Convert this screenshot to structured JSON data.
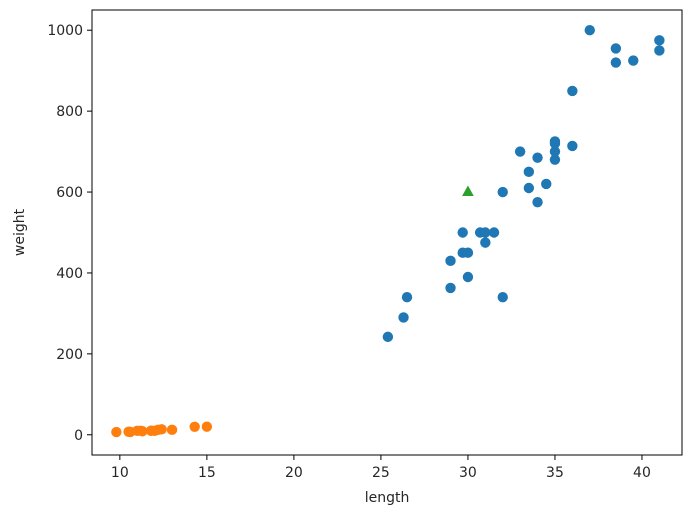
{
  "chart_data": {
    "type": "scatter",
    "xlabel": "length",
    "ylabel": "weight",
    "xlim": [
      8.4,
      42.3
    ],
    "ylim": [
      -50,
      1050
    ],
    "xticks": [
      10,
      15,
      20,
      25,
      30,
      35,
      40
    ],
    "yticks": [
      0,
      200,
      400,
      600,
      800,
      1000
    ],
    "grid": false,
    "series": [
      {
        "color": "#1f77b4",
        "marker": "circle",
        "points": [
          [
            25.4,
            242
          ],
          [
            26.3,
            290
          ],
          [
            26.5,
            340
          ],
          [
            29.0,
            363
          ],
          [
            29.0,
            430
          ],
          [
            29.7,
            450
          ],
          [
            29.7,
            500
          ],
          [
            30.0,
            390
          ],
          [
            30.0,
            450
          ],
          [
            30.7,
            500
          ],
          [
            31.0,
            475
          ],
          [
            31.0,
            500
          ],
          [
            31.5,
            500
          ],
          [
            32.0,
            340
          ],
          [
            32.0,
            600
          ],
          [
            33.0,
            700
          ],
          [
            33.5,
            610
          ],
          [
            33.5,
            650
          ],
          [
            34.0,
            575
          ],
          [
            34.0,
            685
          ],
          [
            34.5,
            620
          ],
          [
            35.0,
            680
          ],
          [
            35.0,
            700
          ],
          [
            35.0,
            725
          ],
          [
            35.0,
            720
          ],
          [
            36.0,
            714
          ],
          [
            36.0,
            850
          ],
          [
            37.0,
            1000
          ],
          [
            38.5,
            920
          ],
          [
            38.5,
            955
          ],
          [
            39.5,
            925
          ],
          [
            41.0,
            975
          ],
          [
            41.0,
            950
          ]
        ]
      },
      {
        "color": "#ff7f0e",
        "marker": "circle",
        "points": [
          [
            9.8,
            6.7
          ],
          [
            10.5,
            7.5
          ],
          [
            10.6,
            7.0
          ],
          [
            11.0,
            9.7
          ],
          [
            11.2,
            9.8
          ],
          [
            11.3,
            8.7
          ],
          [
            11.8,
            10.0
          ],
          [
            11.8,
            9.9
          ],
          [
            12.0,
            9.8
          ],
          [
            12.2,
            12.2
          ],
          [
            12.4,
            13.4
          ],
          [
            13.0,
            12.2
          ],
          [
            14.3,
            19.7
          ],
          [
            15.0,
            19.9
          ]
        ]
      },
      {
        "color": "#2ca02c",
        "marker": "triangle",
        "points": [
          [
            30,
            600
          ]
        ]
      }
    ]
  }
}
